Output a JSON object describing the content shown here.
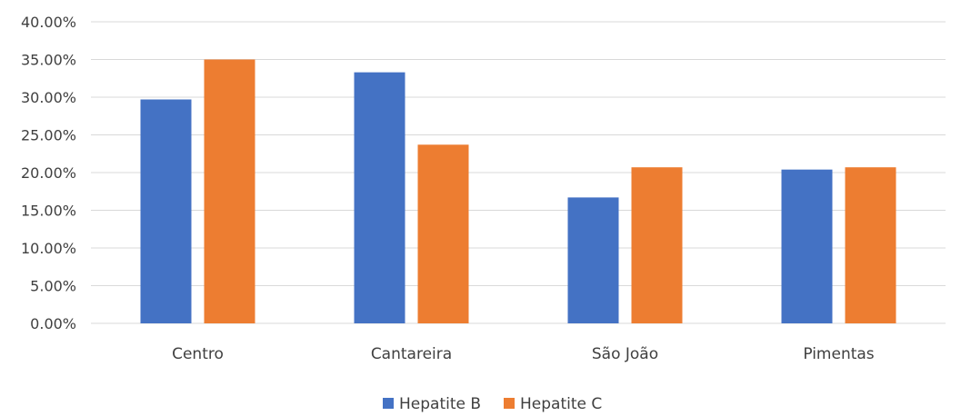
{
  "chart_data": {
    "type": "bar",
    "title": "",
    "xlabel": "",
    "ylabel": "",
    "categories": [
      "Centro",
      "Cantareira",
      "São João",
      "Pimentas"
    ],
    "series": [
      {
        "name": "Hepatite B",
        "color": "#4472C4",
        "values": [
          29.7,
          33.3,
          16.7,
          20.4
        ]
      },
      {
        "name": "Hepatite C",
        "color": "#ED7D31",
        "values": [
          35.0,
          23.7,
          20.7,
          20.7
        ]
      }
    ],
    "ylim": [
      0,
      40
    ],
    "yticks": [
      "0.00%",
      "5.00%",
      "10.00%",
      "15.00%",
      "20.00%",
      "25.00%",
      "30.00%",
      "35.00%",
      "40.00%"
    ],
    "grid": true,
    "gridline_color": "#D9D9D9",
    "legend_position": "bottom"
  }
}
